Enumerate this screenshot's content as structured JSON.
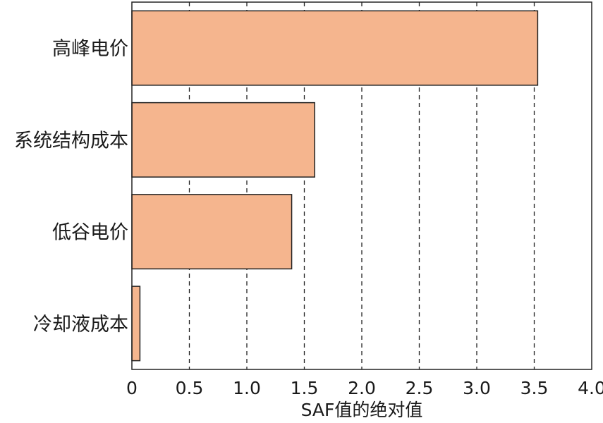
{
  "chart_data": {
    "type": "bar",
    "orientation": "horizontal",
    "categories": [
      "高峰电价",
      "系统结构成本",
      "低谷电价",
      "冷却液成本"
    ],
    "values": [
      3.53,
      1.59,
      1.39,
      0.07
    ],
    "title": "",
    "xlabel": "SAF值的绝对值",
    "ylabel": "",
    "xlim": [
      0,
      4.0
    ],
    "xticks": [
      "0",
      "0.5",
      "1.0",
      "1.5",
      "2.0",
      "2.5",
      "3.0",
      "3.5",
      "4.0"
    ],
    "grid": "vertical dashed lines at each x tick",
    "bar_color": "#f5b58e",
    "bar_edge_color": "#222222"
  }
}
